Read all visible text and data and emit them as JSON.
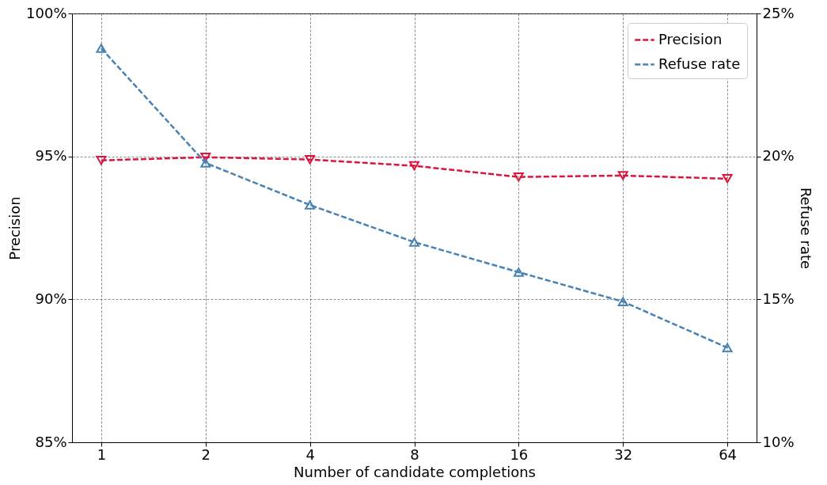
{
  "chart_data": {
    "type": "line",
    "xlabel": "Number of candidate completions",
    "ylabel": "Precision",
    "y2label": "Refuse rate",
    "categories": [
      "1",
      "2",
      "4",
      "8",
      "16",
      "32",
      "64"
    ],
    "series": [
      {
        "name": "Precision",
        "color": "#dc143c",
        "values": [
          94.86,
          94.97,
          94.89,
          94.67,
          94.28,
          94.33,
          94.22
        ]
      },
      {
        "name": "Refuse rate",
        "color": "#4682b4",
        "axis": "y2",
        "values": [
          23.78,
          19.77,
          18.3,
          17.0,
          15.95,
          14.92,
          13.31
        ]
      }
    ],
    "ylim": [
      85,
      100
    ],
    "yticks": [
      {
        "value": 85,
        "label": "85%"
      },
      {
        "value": 90,
        "label": "90%"
      },
      {
        "value": 95,
        "label": "95%"
      },
      {
        "value": 100,
        "label": "100%"
      }
    ],
    "y2lim": [
      10,
      25
    ],
    "y2ticks": [
      {
        "value": 10,
        "label": "10%"
      },
      {
        "value": 15,
        "label": "15%"
      },
      {
        "value": 20,
        "label": "20%"
      },
      {
        "value": 25,
        "label": "25%"
      }
    ],
    "grid": true,
    "legend": "top right",
    "marker": "triangle",
    "line_style": "dashed"
  }
}
